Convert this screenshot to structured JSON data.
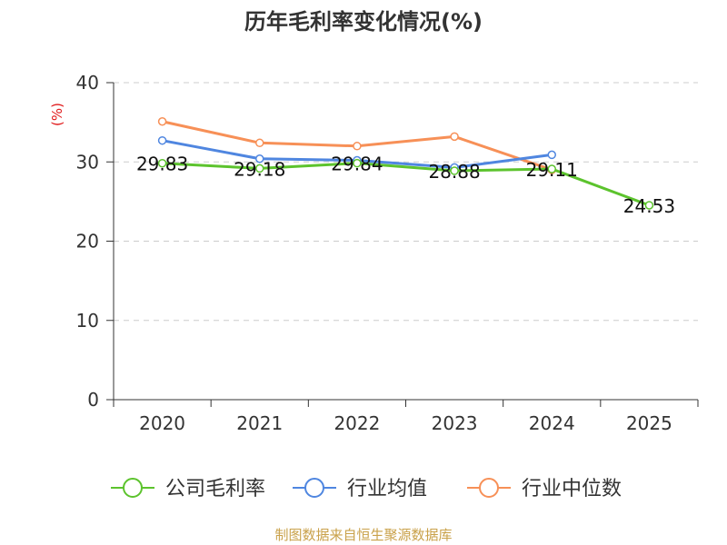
{
  "chart_data": {
    "type": "line",
    "title": "历年毛利率变化情况(%)",
    "ylabel": "(%)",
    "xlabel": "",
    "categories": [
      "2020",
      "2021",
      "2022",
      "2023",
      "2024",
      "2025"
    ],
    "ylim": [
      0,
      40
    ],
    "yticks": [
      0,
      10,
      20,
      30,
      40
    ],
    "grid": true,
    "legend_position": "bottom",
    "series": [
      {
        "name": "公司毛利率",
        "color": "#5cc32d",
        "values": [
          29.83,
          29.18,
          29.84,
          28.88,
          29.11,
          24.53
        ],
        "labels": [
          "29.83",
          "29.18",
          "29.84",
          "28.88",
          "29.11",
          "24.53"
        ]
      },
      {
        "name": "行业均值",
        "color": "#4f86e0",
        "values": [
          32.7,
          30.4,
          30.2,
          29.3,
          30.9,
          null
        ]
      },
      {
        "name": "行业中位数",
        "color": "#f79057",
        "values": [
          35.1,
          32.4,
          32.0,
          33.2,
          29.0,
          null
        ]
      }
    ],
    "colors": {
      "axis": "#333333",
      "grid": "#cccccc",
      "ylabel": "#e0191a"
    }
  },
  "source": "制图数据来自恒生聚源数据库"
}
